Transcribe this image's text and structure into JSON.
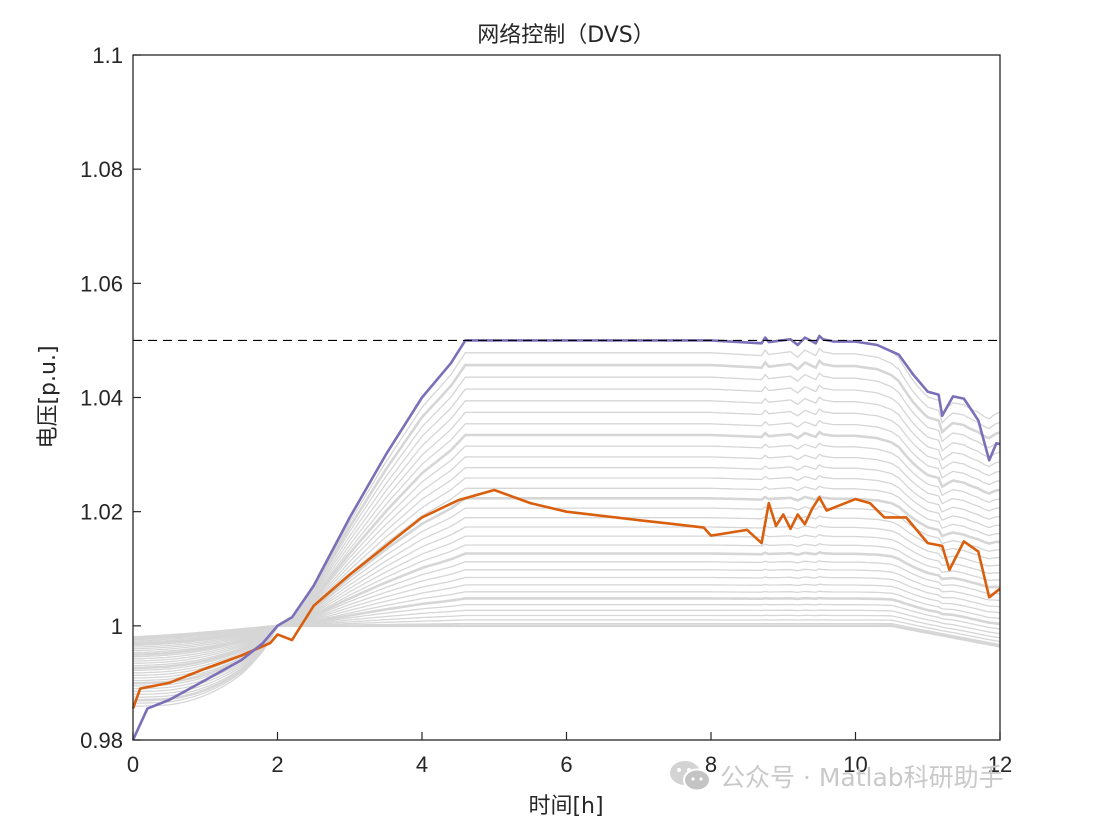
{
  "chart_data": {
    "type": "line",
    "title": "网络控制（DVS）",
    "xlabel": "时间[h]",
    "ylabel": "电压[p.u.]",
    "xlim": [
      0,
      12
    ],
    "ylim": [
      0.98,
      1.1
    ],
    "xticks": [
      "0",
      "2",
      "4",
      "6",
      "8",
      "10",
      "12"
    ],
    "yticks": [
      "0.98",
      "1",
      "1.02",
      "1.04",
      "1.06",
      "1.08",
      "1.1"
    ],
    "grid": false,
    "reference_line": {
      "y": 1.05,
      "style": "dashed",
      "color": "#000000"
    },
    "colors": {
      "upper": "#7b6fb8",
      "middle": "#d95f0e",
      "background": "#d6d6d6"
    },
    "series": [
      {
        "role": "upper",
        "x": [
          0,
          0.2,
          0.5,
          1.0,
          1.5,
          1.8,
          2.0,
          2.2,
          2.5,
          3.0,
          3.5,
          4.0,
          4.4,
          4.6,
          5,
          6,
          7,
          8,
          8.7,
          8.75,
          8.8,
          9.1,
          9.2,
          9.3,
          9.45,
          9.5,
          9.55,
          9.7,
          10.0,
          10.3,
          10.6,
          10.8,
          11.0,
          11.15,
          11.2,
          11.35,
          11.5,
          11.7,
          11.85,
          11.95,
          12.0
        ],
        "y": [
          0.98,
          0.9855,
          0.987,
          0.9905,
          0.994,
          0.997,
          1.0,
          1.0015,
          1.007,
          1.019,
          1.03,
          1.04,
          1.046,
          1.05,
          1.05,
          1.05,
          1.05,
          1.05,
          1.0495,
          1.0505,
          1.0497,
          1.0502,
          1.0492,
          1.0505,
          1.0495,
          1.0508,
          1.0502,
          1.0498,
          1.0498,
          1.0492,
          1.0475,
          1.044,
          1.041,
          1.0405,
          1.0368,
          1.0402,
          1.0398,
          1.036,
          1.029,
          1.032,
          1.0318
        ]
      },
      {
        "role": "middle",
        "x": [
          0,
          0.1,
          0.5,
          1.0,
          1.5,
          1.9,
          2.0,
          2.2,
          2.5,
          3.0,
          3.5,
          4.0,
          4.5,
          5.0,
          5.5,
          6.0,
          7.0,
          7.5,
          7.9,
          8.0,
          8.5,
          8.7,
          8.8,
          8.9,
          9.0,
          9.1,
          9.2,
          9.3,
          9.4,
          9.5,
          9.6,
          10.0,
          10.2,
          10.4,
          10.7,
          11.0,
          11.2,
          11.3,
          11.5,
          11.7,
          11.85,
          12.0
        ],
        "y": [
          0.9855,
          0.989,
          0.99,
          0.9925,
          0.9948,
          0.997,
          0.9985,
          0.9975,
          1.0035,
          1.009,
          1.014,
          1.019,
          1.022,
          1.0238,
          1.0215,
          1.02,
          1.0185,
          1.0178,
          1.0172,
          1.0158,
          1.0168,
          1.0145,
          1.0215,
          1.0175,
          1.0195,
          1.017,
          1.0195,
          1.0178,
          1.0205,
          1.0225,
          1.0202,
          1.0222,
          1.0215,
          1.019,
          1.019,
          1.0145,
          1.014,
          1.0098,
          1.0148,
          1.013,
          1.005,
          1.0065
        ]
      }
    ],
    "background_lines": {
      "count": 33,
      "mid_range": [
        1.0,
        1.048
      ],
      "start_range": [
        0.986,
        0.998
      ],
      "end_range": [
        0.996,
        1.038
      ]
    }
  },
  "watermark": {
    "icon": "wechat-icon",
    "text": "公众号 · Matlab科研助手"
  }
}
